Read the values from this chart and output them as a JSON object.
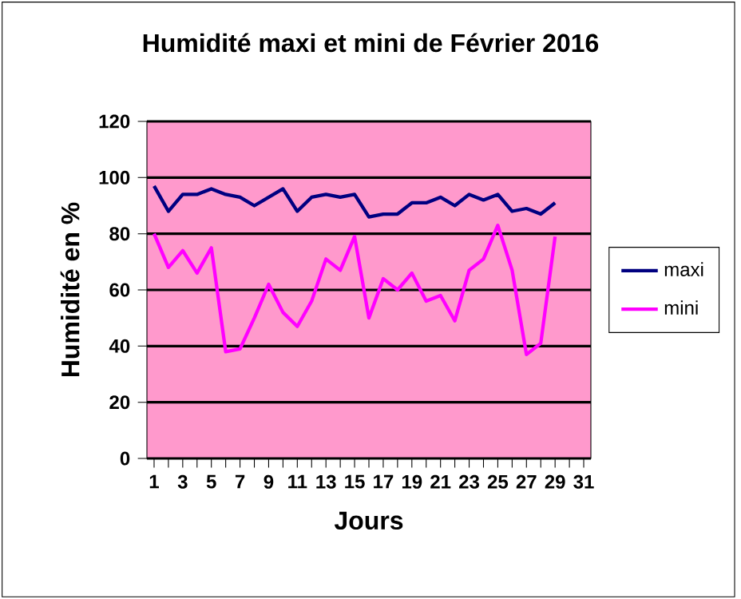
{
  "chart_data": {
    "type": "line",
    "title": "Humidité maxi et mini de Février 2016",
    "xlabel": "Jours",
    "ylabel": "Humidité en %",
    "categories": [
      "1",
      null,
      "3",
      null,
      "5",
      null,
      "7",
      null,
      "9",
      null,
      "11",
      null,
      "13",
      null,
      "15",
      null,
      "17",
      null,
      "19",
      null,
      "21",
      null,
      "23",
      null,
      "25",
      null,
      "27",
      null,
      "29",
      null,
      "31"
    ],
    "series": [
      {
        "name": "maxi",
        "color": "#000080",
        "values": [
          97,
          88,
          94,
          94,
          96,
          94,
          93,
          90,
          93,
          96,
          88,
          93,
          94,
          93,
          94,
          86,
          87,
          87,
          91,
          91,
          93,
          90,
          94,
          92,
          94,
          88,
          89,
          87,
          91,
          null,
          null
        ]
      },
      {
        "name": "mini",
        "color": "#ff00ff",
        "values": [
          80,
          68,
          74,
          66,
          75,
          38,
          39,
          50,
          62,
          52,
          47,
          56,
          71,
          67,
          79,
          50,
          64,
          60,
          66,
          56,
          58,
          49,
          67,
          71,
          83,
          67,
          37,
          41,
          79,
          null,
          null
        ]
      }
    ],
    "ylim": [
      0,
      120
    ],
    "yticks": [
      0,
      20,
      40,
      60,
      80,
      100,
      120
    ],
    "grid": "y",
    "legend": "right",
    "marker": "none",
    "line_style": "solid"
  }
}
